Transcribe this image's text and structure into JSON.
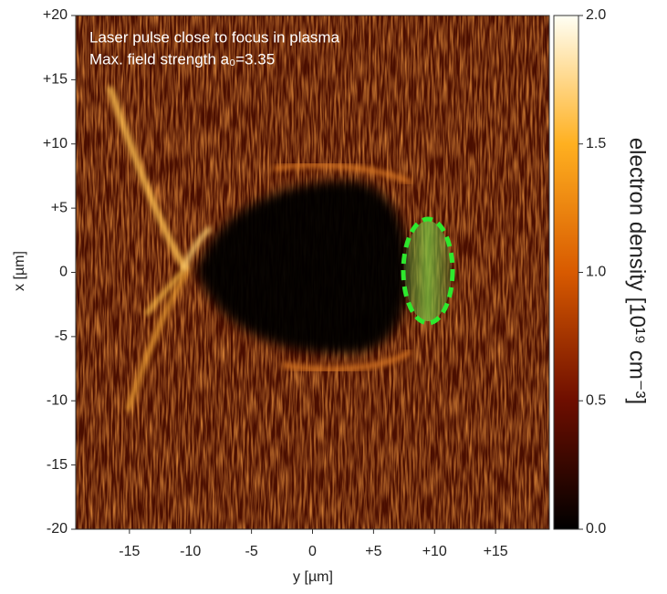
{
  "chart_data": {
    "type": "heatmap",
    "annotations": [
      "Laser pulse close to focus in plasma",
      "Max. field strength a₀=3.35"
    ],
    "xlabel": "y [µm]",
    "ylabel": "x [µm]",
    "xlim": [
      -19.4,
      19.4
    ],
    "xticks": [
      -15,
      -10,
      -5,
      0,
      {
        "value": 5,
        "label": "+5"
      },
      {
        "value": 10,
        "label": "+10"
      },
      {
        "value": 15,
        "label": "+15"
      }
    ],
    "ylim": [
      -20,
      20
    ],
    "yticks": [
      -20,
      -15,
      -10,
      -5,
      0,
      {
        "value": 5,
        "label": "+5"
      },
      {
        "value": 10,
        "label": "+10"
      },
      {
        "value": 15,
        "label": "+15"
      },
      {
        "value": 20,
        "label": "+20"
      }
    ],
    "colorbar": {
      "label": "electron density [10¹⁹ cm⁻³]",
      "lim": [
        0,
        2.0
      ],
      "ticks": [
        {
          "value": 0,
          "label": "0.0"
        },
        0.5,
        {
          "value": 1,
          "label": "1.0"
        },
        1.5,
        {
          "value": 2,
          "label": "2.0"
        }
      ],
      "colors": [
        "#000000",
        "#6e0e00",
        "#d85a00",
        "#ffb020",
        "#fffff4"
      ]
    }
  }
}
